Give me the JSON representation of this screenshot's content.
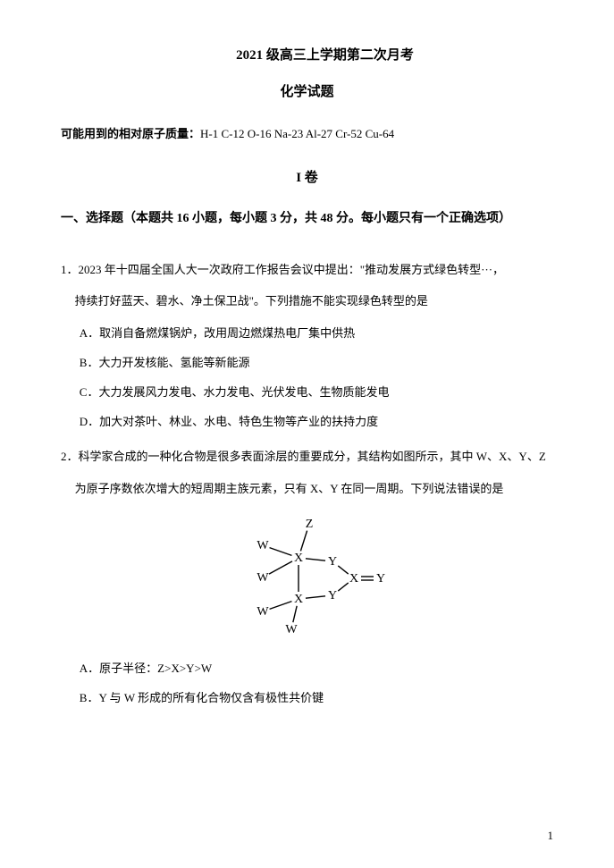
{
  "header": {
    "title_main": "2021 级高三上学期第二次月考",
    "title_sub": "化学试题"
  },
  "atomic_mass": {
    "label": "可能用到的相对原子质量：",
    "values": "H-1   C-12   O-16   Na-23   Al-27   Cr-52   Cu-64"
  },
  "volume": "I 卷",
  "section_header": "一、选择题（本题共 16 小题，每小题 3 分，共 48 分。每小题只有一个正确选项）",
  "q1": {
    "number": "1．",
    "stem_line1": "2023 年十四届全国人大一次政府工作报告会议中提出：\"推动发展方式绿色转型···，",
    "stem_line2": "持续打好蓝天、碧水、净土保卫战\"。下列措施不能实现绿色转型的是",
    "opt_a": "A．取消自备燃煤锅炉，改用周边燃煤热电厂集中供热",
    "opt_b": "B．大力开发核能、氢能等新能源",
    "opt_c": "C．大力发展风力发电、水力发电、光伏发电、生物质能发电",
    "opt_d": "D．加大对茶叶、林业、水电、特色生物等产业的扶持力度"
  },
  "q2": {
    "number": "2．",
    "stem_line1": "科学家合成的一种化合物是很多表面涂层的重要成分，其结构如图所示，其中 W、X、Y、Z",
    "stem_line2": "为原子序数依次增大的短周期主族元素，只有 X、Y 在同一周期。下列说法错误的是",
    "opt_a": "A．原子半径：Z>X>Y>W",
    "opt_b": "B．Y 与 W 形成的所有化合物仅含有极性共价键"
  },
  "diagram": {
    "labels": {
      "z": "Z",
      "w": "W",
      "x": "X",
      "y": "Y"
    },
    "stroke_color": "#000000",
    "stroke_width": 1.4,
    "font_size": 14,
    "font_family": "Times New Roman, serif"
  },
  "page_number": "1"
}
